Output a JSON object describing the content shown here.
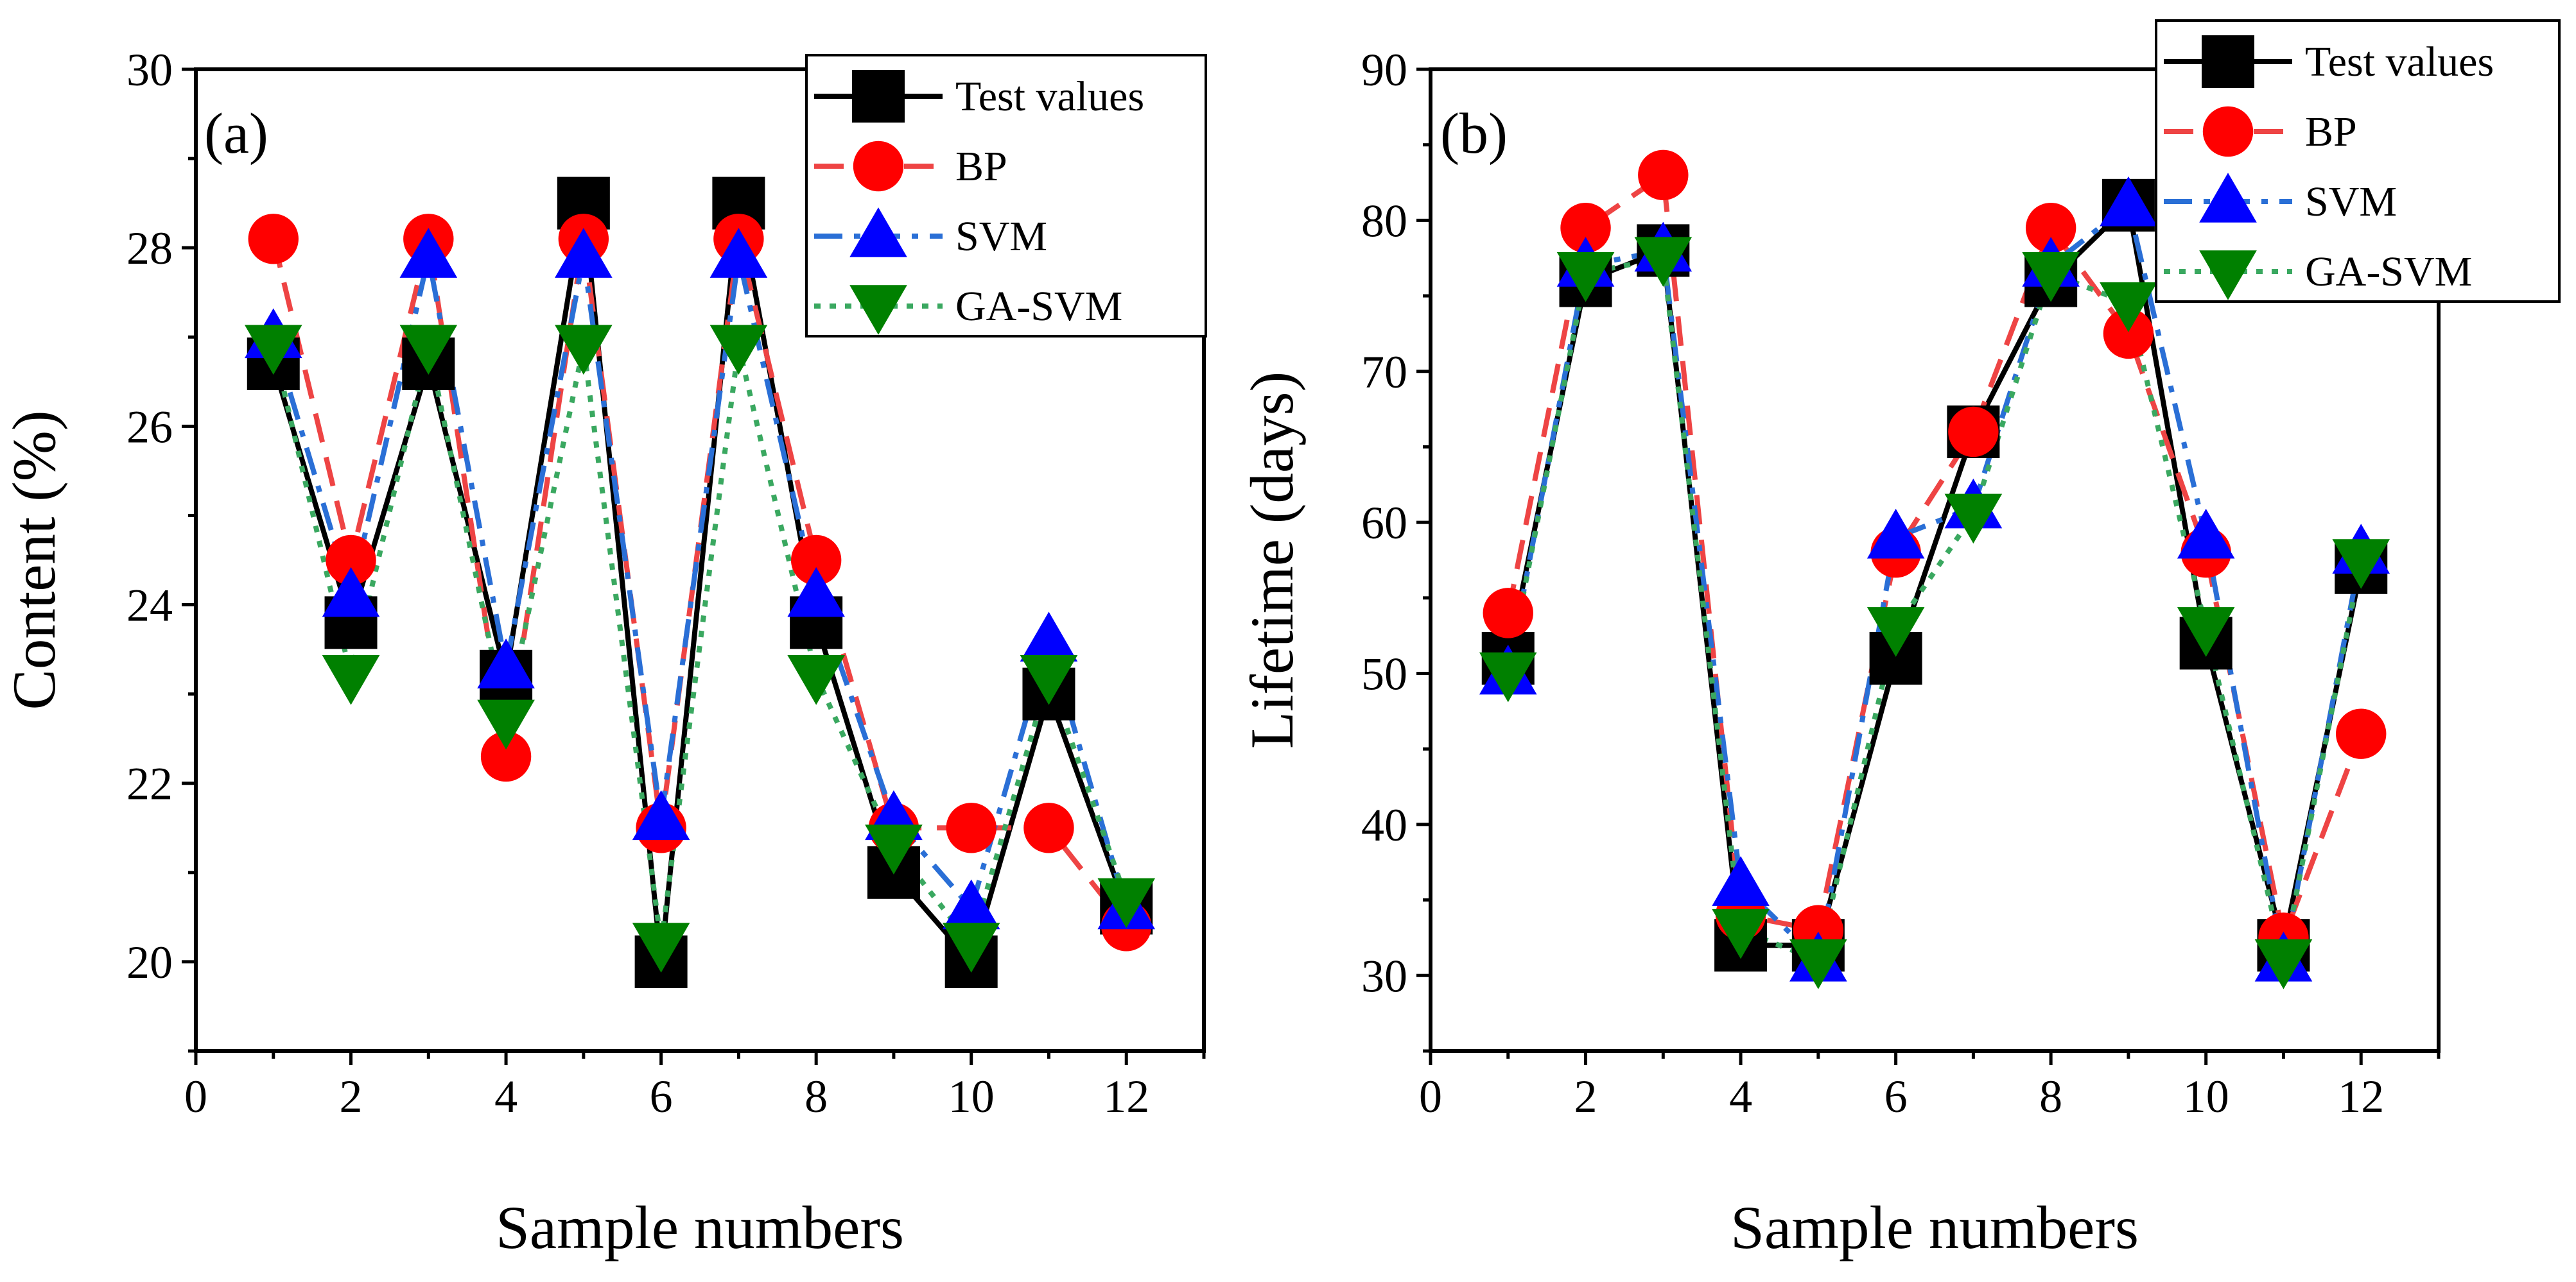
{
  "figure": {
    "background": "#ffffff"
  },
  "series_styles": [
    {
      "name": "Test values",
      "color": "#000000",
      "marker": "square",
      "dash": "none"
    },
    {
      "name": "BP",
      "color": "#ff0000",
      "line_color": "#ee4444",
      "marker": "circle",
      "dash": "dash"
    },
    {
      "name": "SVM",
      "color": "#0000ff",
      "line_color": "#2a6fd6",
      "marker": "triangle-up",
      "dash": "dashdot"
    },
    {
      "name": "GA-SVM",
      "color": "#008000",
      "line_color": "#3aa860",
      "marker": "triangle-down",
      "dash": "dot"
    }
  ],
  "chart_data": [
    {
      "id": "a",
      "type": "line",
      "panel_label": "(a)",
      "xlabel": "Sample numbers",
      "ylabel": "Content (%)",
      "xlim": [
        0,
        13
      ],
      "ylim": [
        19,
        30
      ],
      "xticks": [
        0,
        2,
        4,
        6,
        8,
        10,
        12
      ],
      "yticks": [
        20,
        22,
        24,
        26,
        28,
        30
      ],
      "legend_position": "top-right",
      "x": [
        1,
        2,
        3,
        4,
        5,
        6,
        7,
        8,
        9,
        10,
        11,
        12
      ],
      "series": [
        {
          "name": "Test values",
          "values": [
            26.7,
            23.8,
            26.7,
            23.2,
            28.5,
            20.0,
            28.5,
            23.8,
            21.0,
            20.0,
            23.0,
            20.6
          ]
        },
        {
          "name": "BP",
          "values": [
            28.1,
            24.5,
            28.1,
            22.3,
            28.1,
            21.5,
            28.1,
            24.5,
            21.5,
            21.5,
            21.5,
            20.4
          ]
        },
        {
          "name": "SVM",
          "values": [
            27.0,
            24.1,
            27.9,
            23.3,
            27.9,
            21.6,
            27.9,
            24.1,
            21.6,
            20.6,
            23.6,
            20.6
          ]
        },
        {
          "name": "GA-SVM",
          "values": [
            26.9,
            23.2,
            26.9,
            22.7,
            26.9,
            20.2,
            26.9,
            23.2,
            21.3,
            20.2,
            23.2,
            20.7
          ]
        }
      ]
    },
    {
      "id": "b",
      "type": "line",
      "panel_label": "(b)",
      "xlabel": "Sample numbers",
      "ylabel": "Lifetime (days)",
      "xlim": [
        0,
        13
      ],
      "ylim": [
        25,
        90
      ],
      "xticks": [
        0,
        2,
        4,
        6,
        8,
        10,
        12
      ],
      "yticks": [
        30,
        40,
        50,
        60,
        70,
        80,
        90
      ],
      "legend_position": "top-right",
      "x": [
        1,
        2,
        3,
        4,
        5,
        6,
        7,
        8,
        9,
        10,
        11,
        12
      ],
      "series": [
        {
          "name": "Test values",
          "values": [
            51,
            76,
            78,
            32,
            32,
            51,
            66,
            76,
            81,
            52,
            32,
            57
          ]
        },
        {
          "name": "BP",
          "values": [
            54,
            79.5,
            83,
            34,
            33,
            58,
            66,
            79.5,
            72.5,
            58,
            32.5,
            46
          ]
        },
        {
          "name": "SVM",
          "values": [
            50,
            77,
            78,
            36,
            31,
            59,
            61,
            77,
            81,
            59,
            31,
            58
          ]
        },
        {
          "name": "GA-SVM",
          "values": [
            50,
            76.5,
            77.5,
            33,
            31,
            53,
            60.5,
            76.5,
            74.5,
            53,
            31,
            57.5
          ]
        }
      ]
    }
  ]
}
